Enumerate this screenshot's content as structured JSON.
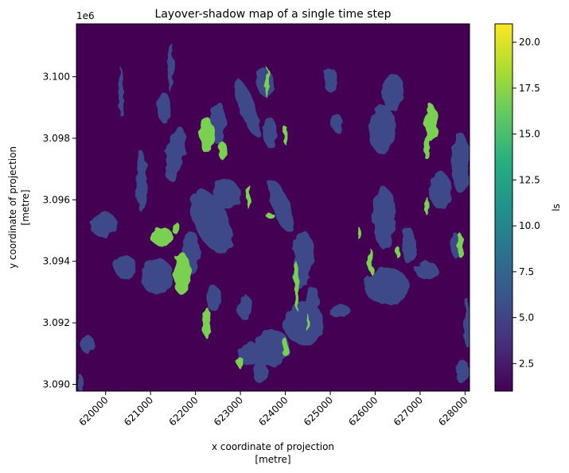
{
  "chart_data": {
    "type": "heatmap",
    "title": "Layover-shadow map of a single time step",
    "xlabel_line1": "x coordinate of projection",
    "xlabel_line2": "[metre]",
    "ylabel_line1": "y coordinate of projection",
    "ylabel_line2": "[metre]",
    "y_offset_label": "1e6",
    "xlim": [
      619350,
      628100
    ],
    "ylim": [
      3.08978,
      3.10172
    ],
    "x_ticks": [
      620000,
      621000,
      622000,
      623000,
      624000,
      625000,
      626000,
      627000,
      628000
    ],
    "x_tick_labels": [
      "620000",
      "621000",
      "622000",
      "623000",
      "624000",
      "625000",
      "626000",
      "627000",
      "628000"
    ],
    "y_ticks": [
      3.09,
      3.092,
      3.094,
      3.096,
      3.098,
      3.1
    ],
    "y_tick_labels": [
      "3.090",
      "3.092",
      "3.094",
      "3.096",
      "3.098",
      "3.100"
    ],
    "colorbar": {
      "label": "ls",
      "colormap": "viridis",
      "vmin": 1,
      "vmax": 21,
      "ticks": [
        2.5,
        5.0,
        7.5,
        10.0,
        12.5,
        15.0,
        17.5,
        20.0
      ],
      "tick_labels": [
        "2.5",
        "5.0",
        "7.5",
        "10.0",
        "12.5",
        "15.0",
        "17.5",
        "20.0"
      ]
    },
    "class_values": {
      "background": 1,
      "layover": 5,
      "shadow": 17
    },
    "colors": {
      "background": "#440154",
      "layover": "#3e4a89",
      "shadow": "#7ad151"
    },
    "layover_regions": [
      {
        "x": 620350,
        "y": 3.0995,
        "rx": 60,
        "ry": 0.0008,
        "rot": 0
      },
      {
        "x": 619950,
        "y": 3.0952,
        "rx": 300,
        "ry": 0.0004,
        "rot": -10
      },
      {
        "x": 620800,
        "y": 3.0966,
        "rx": 120,
        "ry": 0.001,
        "rot": 0
      },
      {
        "x": 620450,
        "y": 3.0938,
        "rx": 250,
        "ry": 0.0004,
        "rot": -15
      },
      {
        "x": 621150,
        "y": 3.0935,
        "rx": 350,
        "ry": 0.0006,
        "rot": 0
      },
      {
        "x": 621550,
        "y": 3.0975,
        "rx": 200,
        "ry": 0.0009,
        "rot": 10
      },
      {
        "x": 621300,
        "y": 3.099,
        "rx": 150,
        "ry": 0.0005,
        "rot": 0
      },
      {
        "x": 621450,
        "y": 3.1003,
        "rx": 70,
        "ry": 0.0008,
        "rot": 0
      },
      {
        "x": 621900,
        "y": 3.0943,
        "rx": 200,
        "ry": 0.0007,
        "rot": 0
      },
      {
        "x": 622350,
        "y": 3.0953,
        "rx": 380,
        "ry": 0.0011,
        "rot": -25
      },
      {
        "x": 622500,
        "y": 3.0985,
        "rx": 180,
        "ry": 0.0007,
        "rot": 0
      },
      {
        "x": 622400,
        "y": 3.0928,
        "rx": 180,
        "ry": 0.0004,
        "rot": 0
      },
      {
        "x": 623100,
        "y": 3.0925,
        "rx": 170,
        "ry": 0.0004,
        "rot": 0
      },
      {
        "x": 623150,
        "y": 3.099,
        "rx": 180,
        "ry": 0.001,
        "rot": -20
      },
      {
        "x": 623650,
        "y": 3.0982,
        "rx": 150,
        "ry": 0.0005,
        "rot": 0
      },
      {
        "x": 623550,
        "y": 3.0998,
        "rx": 200,
        "ry": 0.0005,
        "rot": -15
      },
      {
        "x": 623900,
        "y": 3.0958,
        "rx": 200,
        "ry": 0.0009,
        "rot": -20
      },
      {
        "x": 624400,
        "y": 3.0942,
        "rx": 220,
        "ry": 0.0008,
        "rot": 0
      },
      {
        "x": 624350,
        "y": 3.0935,
        "rx": 170,
        "ry": 0.0004,
        "rot": 0
      },
      {
        "x": 624400,
        "y": 3.092,
        "rx": 450,
        "ry": 0.0007,
        "rot": 0
      },
      {
        "x": 623700,
        "y": 3.0912,
        "rx": 400,
        "ry": 0.0006,
        "rot": 0
      },
      {
        "x": 623200,
        "y": 3.091,
        "rx": 250,
        "ry": 0.0004,
        "rot": 0
      },
      {
        "x": 623450,
        "y": 3.0904,
        "rx": 150,
        "ry": 0.0004,
        "rot": 0
      },
      {
        "x": 624600,
        "y": 3.0928,
        "rx": 150,
        "ry": 0.0004,
        "rot": 0
      },
      {
        "x": 625200,
        "y": 3.0924,
        "rx": 250,
        "ry": 0.0002,
        "rot": 0
      },
      {
        "x": 626250,
        "y": 3.0932,
        "rx": 500,
        "ry": 0.0006,
        "rot": 0
      },
      {
        "x": 627150,
        "y": 3.0937,
        "rx": 250,
        "ry": 0.0003,
        "rot": 0
      },
      {
        "x": 626200,
        "y": 3.0954,
        "rx": 250,
        "ry": 0.001,
        "rot": 0
      },
      {
        "x": 626750,
        "y": 3.0945,
        "rx": 150,
        "ry": 0.0006,
        "rot": 0
      },
      {
        "x": 626150,
        "y": 3.0983,
        "rx": 300,
        "ry": 0.0008,
        "rot": 0
      },
      {
        "x": 626400,
        "y": 3.0995,
        "rx": 250,
        "ry": 0.0006,
        "rot": 0
      },
      {
        "x": 627450,
        "y": 3.0963,
        "rx": 250,
        "ry": 0.0006,
        "rot": 0
      },
      {
        "x": 627900,
        "y": 3.0972,
        "rx": 200,
        "ry": 0.001,
        "rot": 0
      },
      {
        "x": 627800,
        "y": 3.0945,
        "rx": 120,
        "ry": 0.0004,
        "rot": 0
      },
      {
        "x": 625000,
        "y": 3.0999,
        "rx": 150,
        "ry": 0.0004,
        "rot": 0
      },
      {
        "x": 625150,
        "y": 3.0985,
        "rx": 120,
        "ry": 0.0003,
        "rot": 0
      },
      {
        "x": 619600,
        "y": 3.0913,
        "rx": 150,
        "ry": 0.0003,
        "rot": 0
      },
      {
        "x": 619450,
        "y": 3.09,
        "rx": 80,
        "ry": 0.0003,
        "rot": 0
      },
      {
        "x": 627950,
        "y": 3.0904,
        "rx": 150,
        "ry": 0.0004,
        "rot": 0
      },
      {
        "x": 628050,
        "y": 3.092,
        "rx": 80,
        "ry": 0.0008,
        "rot": 0
      },
      {
        "x": 622700,
        "y": 3.0962,
        "rx": 300,
        "ry": 0.0005,
        "rot": -30
      }
    ],
    "shadow_regions": [
      {
        "x": 622250,
        "y": 3.0981,
        "rx": 150,
        "ry": 0.0006
      },
      {
        "x": 622600,
        "y": 3.0976,
        "rx": 90,
        "ry": 0.0003
      },
      {
        "x": 621700,
        "y": 3.0936,
        "rx": 180,
        "ry": 0.0007
      },
      {
        "x": 621250,
        "y": 3.0948,
        "rx": 250,
        "ry": 0.0003
      },
      {
        "x": 621550,
        "y": 3.0951,
        "rx": 90,
        "ry": 0.0002
      },
      {
        "x": 622250,
        "y": 3.092,
        "rx": 100,
        "ry": 0.0005
      },
      {
        "x": 623180,
        "y": 3.0961,
        "rx": 50,
        "ry": 0.0004
      },
      {
        "x": 623600,
        "y": 3.0998,
        "rx": 35,
        "ry": 0.0005
      },
      {
        "x": 624000,
        "y": 3.0981,
        "rx": 50,
        "ry": 0.0003
      },
      {
        "x": 624250,
        "y": 3.0932,
        "rx": 50,
        "ry": 0.0008
      },
      {
        "x": 623650,
        "y": 3.0955,
        "rx": 90,
        "ry": 0.0001
      },
      {
        "x": 627250,
        "y": 3.0985,
        "rx": 150,
        "ry": 0.0006
      },
      {
        "x": 627150,
        "y": 3.0977,
        "rx": 60,
        "ry": 0.0004
      },
      {
        "x": 627900,
        "y": 3.0945,
        "rx": 70,
        "ry": 0.0004
      },
      {
        "x": 625900,
        "y": 3.094,
        "rx": 70,
        "ry": 0.0004
      },
      {
        "x": 625650,
        "y": 3.0949,
        "rx": 40,
        "ry": 0.0002
      },
      {
        "x": 624000,
        "y": 3.0912,
        "rx": 70,
        "ry": 0.0003
      },
      {
        "x": 623000,
        "y": 3.0907,
        "rx": 60,
        "ry": 0.0002
      },
      {
        "x": 626500,
        "y": 3.0943,
        "rx": 30,
        "ry": 0.0002
      },
      {
        "x": 627150,
        "y": 3.0958,
        "rx": 40,
        "ry": 0.0003
      },
      {
        "x": 624500,
        "y": 3.092,
        "rx": 30,
        "ry": 0.0003
      }
    ]
  }
}
